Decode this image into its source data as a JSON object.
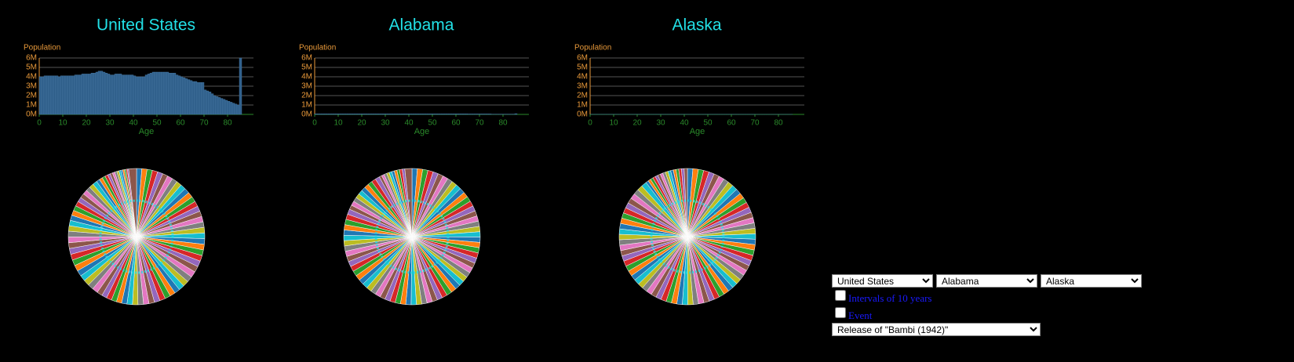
{
  "chart_data": [
    {
      "type": "bar",
      "title": "United States",
      "y_label": "Population",
      "x_label": "Age",
      "color": "#2f5f8a",
      "grid": true,
      "pie": true,
      "pie_colors": [
        "#1f77b4",
        "#ff7f0e",
        "#2ca02c",
        "#d62728",
        "#9467bd",
        "#8c564b",
        "#e377c2",
        "#7f7f7f",
        "#bcbd22",
        "#17becf"
      ],
      "x": [
        0,
        1,
        2,
        3,
        4,
        5,
        6,
        7,
        8,
        9,
        10,
        11,
        12,
        13,
        14,
        15,
        16,
        17,
        18,
        19,
        20,
        21,
        22,
        23,
        24,
        25,
        26,
        27,
        28,
        29,
        30,
        31,
        32,
        33,
        34,
        35,
        36,
        37,
        38,
        39,
        40,
        41,
        42,
        43,
        44,
        45,
        46,
        47,
        48,
        49,
        50,
        51,
        52,
        53,
        54,
        55,
        56,
        57,
        58,
        59,
        60,
        61,
        62,
        63,
        64,
        65,
        66,
        67,
        68,
        69,
        70,
        71,
        72,
        73,
        74,
        75,
        76,
        77,
        78,
        79,
        80,
        81,
        82,
        83,
        84,
        85
      ],
      "values": [
        4.0,
        4.0,
        4.1,
        4.1,
        4.1,
        4.1,
        4.1,
        4.1,
        4.0,
        4.1,
        4.1,
        4.1,
        4.1,
        4.1,
        4.1,
        4.2,
        4.2,
        4.2,
        4.3,
        4.3,
        4.3,
        4.3,
        4.4,
        4.4,
        4.5,
        4.6,
        4.6,
        4.5,
        4.4,
        4.3,
        4.2,
        4.2,
        4.3,
        4.3,
        4.3,
        4.2,
        4.2,
        4.2,
        4.2,
        4.2,
        4.1,
        4.0,
        4.0,
        4.0,
        4.0,
        4.2,
        4.3,
        4.4,
        4.5,
        4.5,
        4.5,
        4.5,
        4.5,
        4.5,
        4.5,
        4.4,
        4.4,
        4.4,
        4.2,
        4.1,
        4.0,
        3.9,
        3.8,
        3.7,
        3.6,
        3.5,
        3.5,
        3.4,
        3.4,
        3.4,
        2.6,
        2.5,
        2.4,
        2.2,
        2.0,
        1.9,
        1.8,
        1.7,
        1.6,
        1.5,
        1.4,
        1.3,
        1.2,
        1.1,
        1.0,
        6.0
      ],
      "xlim": [
        0,
        91
      ],
      "xticks": [
        0,
        10,
        20,
        30,
        40,
        50,
        60,
        70,
        80
      ],
      "ylim": [
        0,
        6
      ],
      "yticks": [
        {
          "value": 0,
          "label": "0M"
        },
        {
          "value": 1,
          "label": "1M"
        },
        {
          "value": 2,
          "label": "2M"
        },
        {
          "value": 3,
          "label": "3M"
        },
        {
          "value": 4,
          "label": "4M"
        },
        {
          "value": 5,
          "label": "5M"
        },
        {
          "value": 6,
          "label": "6M"
        }
      ]
    },
    {
      "type": "bar",
      "title": "Alabama",
      "y_label": "Population",
      "x_label": "Age",
      "color": "#2f5f8a",
      "grid": true,
      "pie": true,
      "pie_colors": [
        "#1f77b4",
        "#ff7f0e",
        "#2ca02c",
        "#d62728",
        "#9467bd",
        "#8c564b",
        "#e377c2",
        "#7f7f7f",
        "#bcbd22",
        "#17becf"
      ],
      "x": [
        0,
        1,
        2,
        3,
        4,
        5,
        6,
        7,
        8,
        9,
        10,
        11,
        12,
        13,
        14,
        15,
        16,
        17,
        18,
        19,
        20,
        21,
        22,
        23,
        24,
        25,
        26,
        27,
        28,
        29,
        30,
        31,
        32,
        33,
        34,
        35,
        36,
        37,
        38,
        39,
        40,
        41,
        42,
        43,
        44,
        45,
        46,
        47,
        48,
        49,
        50,
        51,
        52,
        53,
        54,
        55,
        56,
        57,
        58,
        59,
        60,
        61,
        62,
        63,
        64,
        65,
        66,
        67,
        68,
        69,
        70,
        71,
        72,
        73,
        74,
        75,
        76,
        77,
        78,
        79,
        80,
        81,
        82,
        83,
        84,
        85
      ],
      "values": [
        0.06,
        0.06,
        0.06,
        0.06,
        0.06,
        0.06,
        0.06,
        0.06,
        0.06,
        0.06,
        0.06,
        0.06,
        0.06,
        0.06,
        0.06,
        0.06,
        0.06,
        0.06,
        0.06,
        0.06,
        0.06,
        0.06,
        0.06,
        0.06,
        0.06,
        0.06,
        0.06,
        0.06,
        0.06,
        0.06,
        0.06,
        0.06,
        0.06,
        0.06,
        0.06,
        0.06,
        0.06,
        0.06,
        0.06,
        0.06,
        0.06,
        0.06,
        0.06,
        0.06,
        0.06,
        0.06,
        0.06,
        0.06,
        0.06,
        0.06,
        0.06,
        0.06,
        0.06,
        0.06,
        0.06,
        0.06,
        0.06,
        0.06,
        0.06,
        0.06,
        0.06,
        0.06,
        0.06,
        0.06,
        0.06,
        0.05,
        0.05,
        0.05,
        0.05,
        0.05,
        0.05,
        0.05,
        0.05,
        0.05,
        0.05,
        0.03,
        0.03,
        0.03,
        0.03,
        0.03,
        0.03,
        0.03,
        0.03,
        0.03,
        0.03,
        0.08
      ],
      "xlim": [
        0,
        91
      ],
      "xticks": [
        0,
        10,
        20,
        30,
        40,
        50,
        60,
        70,
        80
      ],
      "ylim": [
        0,
        6
      ],
      "yticks": [
        {
          "value": 0,
          "label": "0M"
        },
        {
          "value": 1,
          "label": "1M"
        },
        {
          "value": 2,
          "label": "2M"
        },
        {
          "value": 3,
          "label": "3M"
        },
        {
          "value": 4,
          "label": "4M"
        },
        {
          "value": 5,
          "label": "5M"
        },
        {
          "value": 6,
          "label": "6M"
        }
      ]
    },
    {
      "type": "bar",
      "title": "Alaska",
      "y_label": "Population",
      "x_label": "Age",
      "color": "#2f5f8a",
      "grid": true,
      "pie": true,
      "pie_colors": [
        "#1f77b4",
        "#ff7f0e",
        "#2ca02c",
        "#d62728",
        "#9467bd",
        "#8c564b",
        "#e377c2",
        "#7f7f7f",
        "#bcbd22",
        "#17becf"
      ],
      "x": [
        0,
        1,
        2,
        3,
        4,
        5,
        6,
        7,
        8,
        9,
        10,
        11,
        12,
        13,
        14,
        15,
        16,
        17,
        18,
        19,
        20,
        21,
        22,
        23,
        24,
        25,
        26,
        27,
        28,
        29,
        30,
        31,
        32,
        33,
        34,
        35,
        36,
        37,
        38,
        39,
        40,
        41,
        42,
        43,
        44,
        45,
        46,
        47,
        48,
        49,
        50,
        51,
        52,
        53,
        54,
        55,
        56,
        57,
        58,
        59,
        60,
        61,
        62,
        63,
        64,
        65,
        66,
        67,
        68,
        69,
        70,
        71,
        72,
        73,
        74,
        75,
        76,
        77,
        78,
        79,
        80,
        81,
        82,
        83,
        84,
        85
      ],
      "values": [
        0.01,
        0.01,
        0.01,
        0.01,
        0.01,
        0.01,
        0.01,
        0.01,
        0.01,
        0.01,
        0.01,
        0.01,
        0.01,
        0.01,
        0.01,
        0.01,
        0.01,
        0.01,
        0.01,
        0.01,
        0.01,
        0.01,
        0.01,
        0.01,
        0.01,
        0.01,
        0.01,
        0.01,
        0.01,
        0.01,
        0.01,
        0.01,
        0.01,
        0.01,
        0.01,
        0.01,
        0.01,
        0.01,
        0.01,
        0.01,
        0.01,
        0.01,
        0.01,
        0.01,
        0.01,
        0.01,
        0.01,
        0.01,
        0.01,
        0.01,
        0.01,
        0.01,
        0.01,
        0.01,
        0.01,
        0.01,
        0.01,
        0.01,
        0.01,
        0.01,
        0.01,
        0.01,
        0.01,
        0.01,
        0.01,
        0.01,
        0.01,
        0.01,
        0.01,
        0.01,
        0.005,
        0.005,
        0.005,
        0.005,
        0.005,
        0.005,
        0.005,
        0.005,
        0.005,
        0.005,
        0.005,
        0.005,
        0.005,
        0.005,
        0.005,
        0.006
      ],
      "xlim": [
        0,
        91
      ],
      "xticks": [
        0,
        10,
        20,
        30,
        40,
        50,
        60,
        70,
        80
      ],
      "ylim": [
        0,
        6
      ],
      "yticks": [
        {
          "value": 0,
          "label": "0M"
        },
        {
          "value": 1,
          "label": "1M"
        },
        {
          "value": 2,
          "label": "2M"
        },
        {
          "value": 3,
          "label": "3M"
        },
        {
          "value": 4,
          "label": "4M"
        },
        {
          "value": 5,
          "label": "5M"
        },
        {
          "value": 6,
          "label": "6M"
        }
      ]
    }
  ],
  "controls": {
    "selects": [
      "United States",
      "Alabama",
      "Alaska"
    ],
    "checkboxes": [
      "Intervals of 10 years",
      "Event"
    ],
    "event_select": "Release of \"Bambi (1942)\""
  }
}
